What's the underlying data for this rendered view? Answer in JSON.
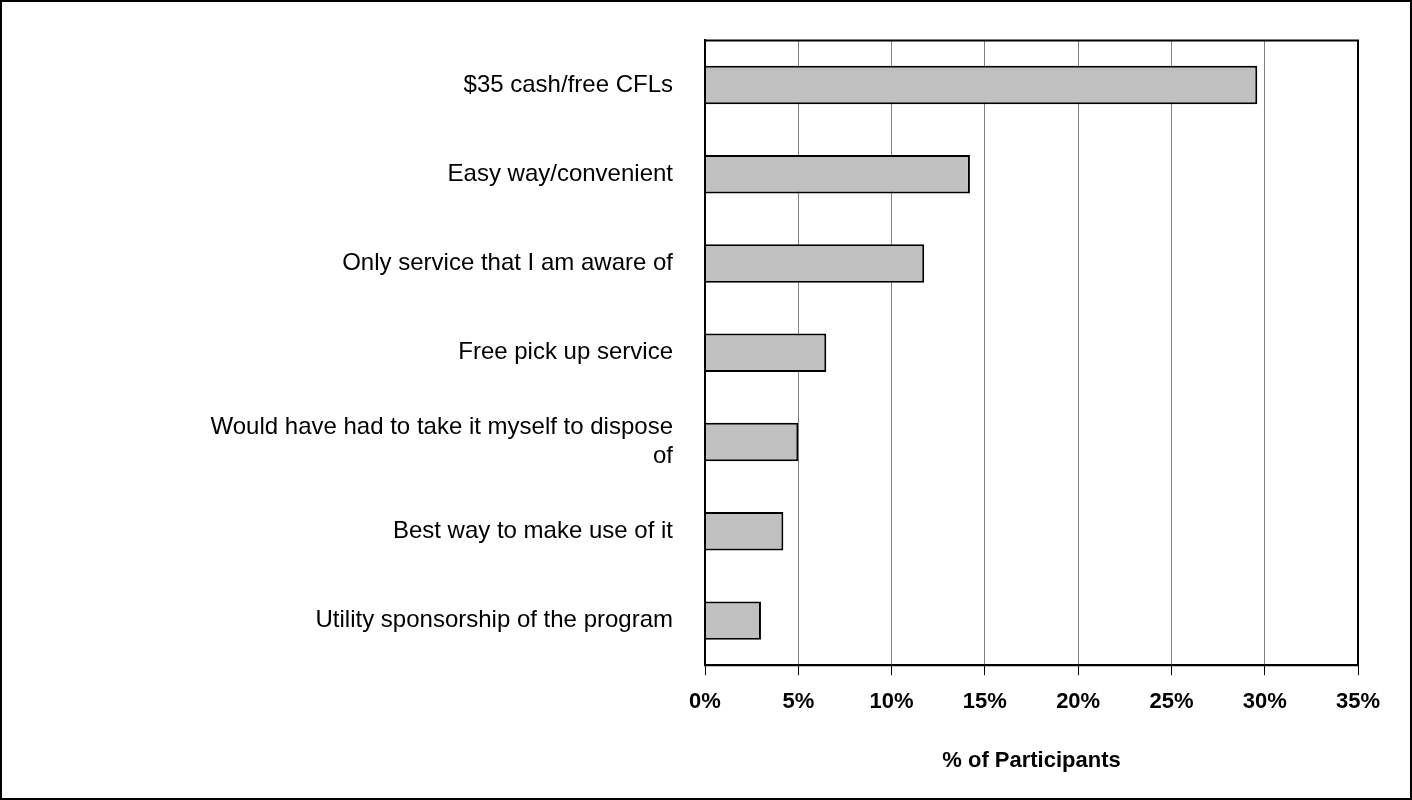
{
  "chart_data": {
    "type": "bar",
    "orientation": "horizontal",
    "xlabel": "% of Participants",
    "categories": [
      "$35 cash/free CFLs",
      "Easy way/convenient",
      "Only service that I am aware of",
      "Free pick up service",
      "Would have had to take it myself to dispose of",
      "Best way to make use of it",
      "Utility sponsorship of the program"
    ],
    "values": [
      29.6,
      14.2,
      11.75,
      6.5,
      5.0,
      4.2,
      3.0
    ],
    "color": "#c0c0c0",
    "xlim": [
      0,
      35
    ],
    "xticks": [
      {
        "value": 0,
        "label": "0%"
      },
      {
        "value": 5,
        "label": "5%"
      },
      {
        "value": 10,
        "label": "10%"
      },
      {
        "value": 15,
        "label": "15%"
      },
      {
        "value": 20,
        "label": "20%"
      },
      {
        "value": 25,
        "label": "25%"
      },
      {
        "value": 30,
        "label": "30%"
      },
      {
        "value": 35,
        "label": "35%"
      }
    ],
    "grid": "x",
    "legend": false
  }
}
